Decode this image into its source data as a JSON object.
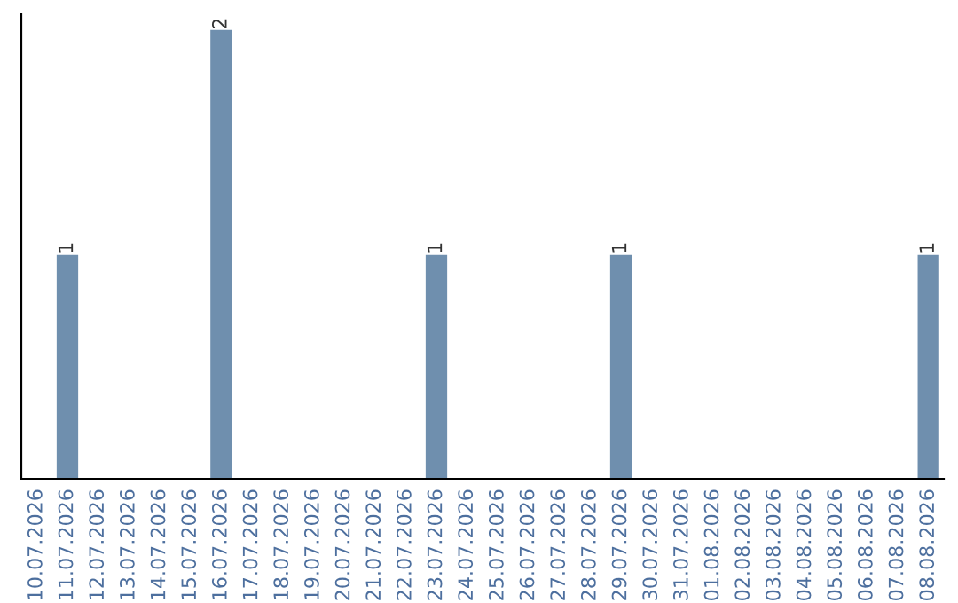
{
  "chart_data": {
    "type": "bar",
    "categories": [
      "10.07.2026",
      "11.07.2026",
      "12.07.2026",
      "13.07.2026",
      "14.07.2026",
      "15.07.2026",
      "16.07.2026",
      "17.07.2026",
      "18.07.2026",
      "19.07.2026",
      "20.07.2026",
      "21.07.2026",
      "22.07.2026",
      "23.07.2026",
      "24.07.2026",
      "25.07.2026",
      "26.07.2026",
      "27.07.2026",
      "28.07.2026",
      "29.07.2026",
      "30.07.2026",
      "31.07.2026",
      "01.08.2026",
      "02.08.2026",
      "03.08.2026",
      "04.08.2026",
      "05.08.2026",
      "06.08.2026",
      "07.08.2026",
      "08.08.2026"
    ],
    "values": [
      0,
      1,
      0,
      0,
      0,
      0,
      2,
      0,
      0,
      0,
      0,
      0,
      0,
      1,
      0,
      0,
      0,
      0,
      0,
      1,
      0,
      0,
      0,
      0,
      0,
      0,
      0,
      0,
      0,
      1
    ],
    "value_labels": [
      null,
      "1",
      null,
      null,
      null,
      null,
      "2",
      null,
      null,
      null,
      null,
      null,
      null,
      "1",
      null,
      null,
      null,
      null,
      null,
      "1",
      null,
      null,
      null,
      null,
      null,
      null,
      null,
      null,
      null,
      "1"
    ],
    "color": "#6f8fae",
    "grid": false,
    "legend": false,
    "tick_labels": "x"
  }
}
